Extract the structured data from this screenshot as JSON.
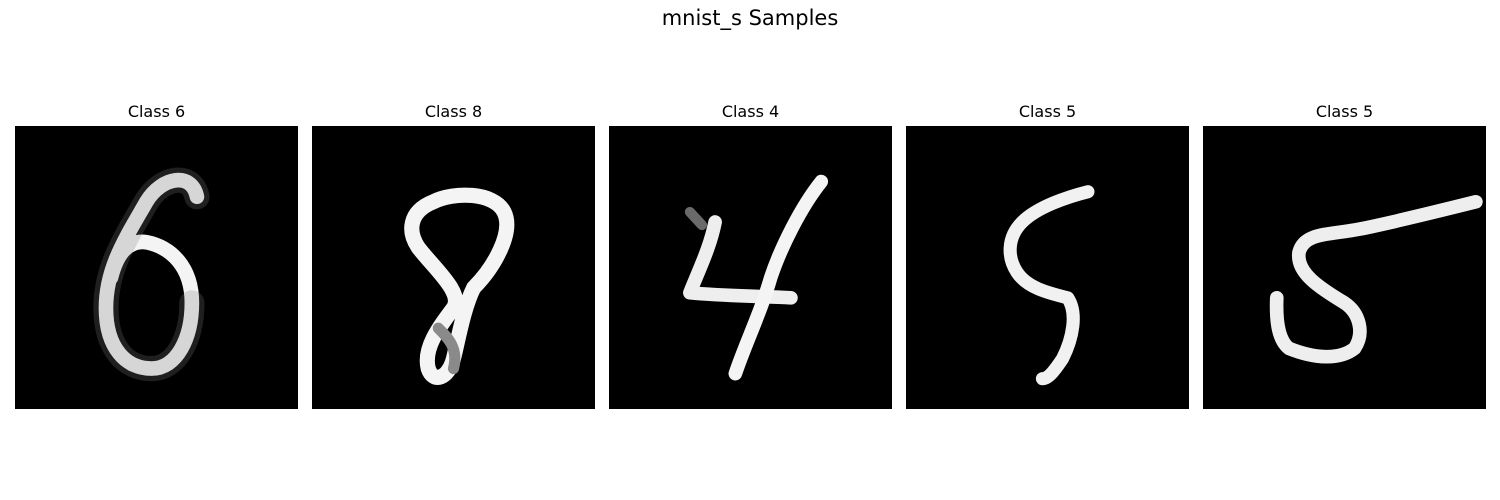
{
  "figure": {
    "title": "mnist_s Samples"
  },
  "panels": [
    {
      "label": "Class 6"
    },
    {
      "label": "Class 8"
    },
    {
      "label": "Class 4"
    },
    {
      "label": "Class 5"
    },
    {
      "label": "Class 5"
    }
  ]
}
